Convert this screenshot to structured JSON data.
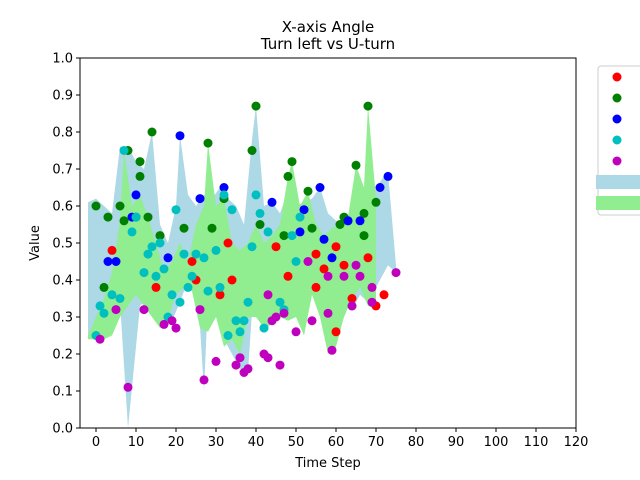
{
  "chart_data": {
    "type": "scatter",
    "title": "X-axis Angle",
    "subtitle": "Turn left vs U-turn",
    "xlabel": "Time Step",
    "ylabel": "Value",
    "xlim": [
      -4,
      120
    ],
    "ylim": [
      0.0,
      1.0
    ],
    "xticks": [
      "0",
      "10",
      "20",
      "30",
      "40",
      "50",
      "60",
      "70",
      "80",
      "90",
      "100",
      "110",
      "120"
    ],
    "yticks": [
      "0.0",
      "0.1",
      "0.2",
      "0.3",
      "0.4",
      "0.5",
      "0.6",
      "0.7",
      "0.8",
      "0.9",
      "1.0"
    ],
    "grid": false,
    "legend_position": "outside-right",
    "bands": [
      {
        "color": "#add8e6",
        "x_start": -2,
        "x_end": 75,
        "upper": [
          [
            -2,
            0.61
          ],
          [
            0,
            0.62
          ],
          [
            2,
            0.6
          ],
          [
            4,
            0.58
          ],
          [
            6,
            0.76
          ],
          [
            8,
            0.76
          ],
          [
            10,
            0.72
          ],
          [
            12,
            0.7
          ],
          [
            14,
            0.8
          ],
          [
            16,
            0.55
          ],
          [
            18,
            0.5
          ],
          [
            20,
            0.6
          ],
          [
            21,
            0.79
          ],
          [
            23,
            0.63
          ],
          [
            25,
            0.6
          ],
          [
            27,
            0.63
          ],
          [
            29,
            0.62
          ],
          [
            31,
            0.65
          ],
          [
            33,
            0.62
          ],
          [
            35,
            0.6
          ],
          [
            37,
            0.55
          ],
          [
            39,
            0.78
          ],
          [
            40,
            0.87
          ],
          [
            42,
            0.6
          ],
          [
            44,
            0.61
          ],
          [
            46,
            0.58
          ],
          [
            48,
            0.64
          ],
          [
            50,
            0.6
          ],
          [
            52,
            0.61
          ],
          [
            54,
            0.62
          ],
          [
            56,
            0.65
          ],
          [
            58,
            0.58
          ],
          [
            60,
            0.56
          ],
          [
            62,
            0.56
          ],
          [
            64,
            0.57
          ],
          [
            66,
            0.57
          ],
          [
            68,
            0.6
          ],
          [
            70,
            0.65
          ],
          [
            72,
            0.68
          ],
          [
            73,
            0.69
          ],
          [
            75,
            0.44
          ]
        ],
        "lower": [
          [
            75,
            0.42
          ],
          [
            73,
            0.44
          ],
          [
            70,
            0.38
          ],
          [
            68,
            0.34
          ],
          [
            66,
            0.36
          ],
          [
            64,
            0.32
          ],
          [
            62,
            0.35
          ],
          [
            60,
            0.4
          ],
          [
            58,
            0.44
          ],
          [
            56,
            0.44
          ],
          [
            54,
            0.45
          ],
          [
            52,
            0.44
          ],
          [
            50,
            0.3
          ],
          [
            48,
            0.42
          ],
          [
            46,
            0.36
          ],
          [
            44,
            0.3
          ],
          [
            42,
            0.28
          ],
          [
            40,
            0.48
          ],
          [
            38,
            0.15
          ],
          [
            36,
            0.16
          ],
          [
            34,
            0.2
          ],
          [
            32,
            0.24
          ],
          [
            30,
            0.38
          ],
          [
            28,
            0.35
          ],
          [
            27,
            0.1
          ],
          [
            25,
            0.45
          ],
          [
            23,
            0.4
          ],
          [
            21,
            0.34
          ],
          [
            19,
            0.29
          ],
          [
            17,
            0.3
          ],
          [
            15,
            0.32
          ],
          [
            13,
            0.35
          ],
          [
            11,
            0.33
          ],
          [
            8,
            0.0
          ],
          [
            6,
            0.34
          ],
          [
            4,
            0.3
          ],
          [
            2,
            0.28
          ],
          [
            0,
            0.25
          ],
          [
            -2,
            0.25
          ]
        ]
      },
      {
        "color": "#90ee90",
        "x_start": -2,
        "x_end": 70,
        "upper": [
          [
            -2,
            0.25
          ],
          [
            0,
            0.3
          ],
          [
            2,
            0.35
          ],
          [
            4,
            0.42
          ],
          [
            6,
            0.56
          ],
          [
            7,
            0.75
          ],
          [
            9,
            0.6
          ],
          [
            11,
            0.63
          ],
          [
            13,
            0.57
          ],
          [
            15,
            0.5
          ],
          [
            17,
            0.42
          ],
          [
            19,
            0.45
          ],
          [
            21,
            0.5
          ],
          [
            23,
            0.45
          ],
          [
            25,
            0.55
          ],
          [
            27,
            0.6
          ],
          [
            28,
            0.77
          ],
          [
            30,
            0.6
          ],
          [
            32,
            0.62
          ],
          [
            34,
            0.5
          ],
          [
            36,
            0.48
          ],
          [
            38,
            0.5
          ],
          [
            40,
            0.55
          ],
          [
            42,
            0.5
          ],
          [
            44,
            0.52
          ],
          [
            46,
            0.55
          ],
          [
            48,
            0.68
          ],
          [
            49,
            0.72
          ],
          [
            51,
            0.6
          ],
          [
            53,
            0.64
          ],
          [
            55,
            0.55
          ],
          [
            57,
            0.52
          ],
          [
            59,
            0.54
          ],
          [
            61,
            0.55
          ],
          [
            63,
            0.57
          ],
          [
            65,
            0.71
          ],
          [
            67,
            0.65
          ],
          [
            68,
            0.87
          ],
          [
            70,
            0.62
          ]
        ],
        "lower": [
          [
            70,
            0.32
          ],
          [
            68,
            0.33
          ],
          [
            66,
            0.38
          ],
          [
            64,
            0.35
          ],
          [
            62,
            0.3
          ],
          [
            60,
            0.22
          ],
          [
            58,
            0.2
          ],
          [
            56,
            0.3
          ],
          [
            54,
            0.36
          ],
          [
            52,
            0.25
          ],
          [
            50,
            0.3
          ],
          [
            48,
            0.29
          ],
          [
            46,
            0.3
          ],
          [
            44,
            0.28
          ],
          [
            42,
            0.27
          ],
          [
            40,
            0.3
          ],
          [
            38,
            0.3
          ],
          [
            36,
            0.2
          ],
          [
            34,
            0.24
          ],
          [
            32,
            0.22
          ],
          [
            30,
            0.3
          ],
          [
            28,
            0.26
          ],
          [
            26,
            0.27
          ],
          [
            24,
            0.37
          ],
          [
            22,
            0.38
          ],
          [
            20,
            0.36
          ],
          [
            18,
            0.3
          ],
          [
            16,
            0.27
          ],
          [
            14,
            0.3
          ],
          [
            12,
            0.33
          ],
          [
            10,
            0.36
          ],
          [
            8,
            0.33
          ],
          [
            6,
            0.3
          ],
          [
            4,
            0.25
          ],
          [
            2,
            0.24
          ],
          [
            0,
            0.24
          ],
          [
            -2,
            0.24
          ]
        ]
      }
    ],
    "series": [
      {
        "color": "#ff0000",
        "points": [
          [
            4,
            0.48
          ],
          [
            15,
            0.38
          ],
          [
            24,
            0.45
          ],
          [
            25,
            0.4
          ],
          [
            31,
            0.36
          ],
          [
            33,
            0.5
          ],
          [
            34,
            0.4
          ],
          [
            45,
            0.49
          ],
          [
            48,
            0.41
          ],
          [
            55,
            0.47
          ],
          [
            57,
            0.43
          ],
          [
            60,
            0.49
          ],
          [
            62,
            0.44
          ],
          [
            64,
            0.35
          ],
          [
            68,
            0.46
          ],
          [
            70,
            0.33
          ],
          [
            72,
            0.36
          ],
          [
            55,
            0.38
          ],
          [
            60,
            0.26
          ]
        ]
      },
      {
        "color": "#008000",
        "points": [
          [
            0,
            0.6
          ],
          [
            2,
            0.38
          ],
          [
            3,
            0.57
          ],
          [
            6,
            0.6
          ],
          [
            7,
            0.56
          ],
          [
            8,
            0.75
          ],
          [
            10,
            0.57
          ],
          [
            11,
            0.72
          ],
          [
            11,
            0.68
          ],
          [
            13,
            0.57
          ],
          [
            14,
            0.8
          ],
          [
            16,
            0.52
          ],
          [
            22,
            0.54
          ],
          [
            28,
            0.77
          ],
          [
            29,
            0.54
          ],
          [
            32,
            0.62
          ],
          [
            39,
            0.75
          ],
          [
            40,
            0.87
          ],
          [
            41,
            0.55
          ],
          [
            47,
            0.52
          ],
          [
            48,
            0.68
          ],
          [
            49,
            0.72
          ],
          [
            53,
            0.64
          ],
          [
            54,
            0.54
          ],
          [
            61,
            0.55
          ],
          [
            62,
            0.57
          ],
          [
            63,
            0.56
          ],
          [
            65,
            0.71
          ],
          [
            67,
            0.58
          ],
          [
            67,
            0.52
          ],
          [
            68,
            0.87
          ],
          [
            70,
            0.61
          ]
        ]
      },
      {
        "color": "#0000ff",
        "points": [
          [
            3,
            0.45
          ],
          [
            5,
            0.45
          ],
          [
            9,
            0.57
          ],
          [
            10,
            0.63
          ],
          [
            18,
            0.46
          ],
          [
            21,
            0.79
          ],
          [
            26,
            0.62
          ],
          [
            32,
            0.65
          ],
          [
            44,
            0.61
          ],
          [
            51,
            0.53
          ],
          [
            52,
            0.59
          ],
          [
            56,
            0.65
          ],
          [
            57,
            0.51
          ],
          [
            59,
            0.46
          ],
          [
            63,
            0.56
          ],
          [
            66,
            0.56
          ],
          [
            71,
            0.65
          ],
          [
            73,
            0.68
          ]
        ]
      },
      {
        "color": "#00bfbf",
        "points": [
          [
            0,
            0.25
          ],
          [
            1,
            0.33
          ],
          [
            2,
            0.31
          ],
          [
            4,
            0.36
          ],
          [
            6,
            0.35
          ],
          [
            7,
            0.75
          ],
          [
            9,
            0.53
          ],
          [
            10,
            0.57
          ],
          [
            12,
            0.42
          ],
          [
            13,
            0.47
          ],
          [
            14,
            0.49
          ],
          [
            15,
            0.41
          ],
          [
            16,
            0.5
          ],
          [
            17,
            0.43
          ],
          [
            18,
            0.3
          ],
          [
            19,
            0.36
          ],
          [
            20,
            0.59
          ],
          [
            21,
            0.34
          ],
          [
            22,
            0.47
          ],
          [
            23,
            0.38
          ],
          [
            24,
            0.41
          ],
          [
            25,
            0.47
          ],
          [
            27,
            0.46
          ],
          [
            28,
            0.37
          ],
          [
            30,
            0.48
          ],
          [
            31,
            0.38
          ],
          [
            32,
            0.63
          ],
          [
            33,
            0.25
          ],
          [
            34,
            0.59
          ],
          [
            35,
            0.29
          ],
          [
            36,
            0.26
          ],
          [
            37,
            0.29
          ],
          [
            38,
            0.34
          ],
          [
            39,
            0.49
          ],
          [
            40,
            0.63
          ],
          [
            41,
            0.58
          ],
          [
            42,
            0.27
          ],
          [
            43,
            0.53
          ],
          [
            46,
            0.34
          ],
          [
            47,
            0.32
          ],
          [
            49,
            0.52
          ],
          [
            50,
            0.45
          ],
          [
            51,
            0.57
          ],
          [
            64,
            0.33
          ]
        ]
      },
      {
        "color": "#bf00bf",
        "points": [
          [
            1,
            0.24
          ],
          [
            5,
            0.32
          ],
          [
            8,
            0.11
          ],
          [
            12,
            0.32
          ],
          [
            17,
            0.28
          ],
          [
            19,
            0.29
          ],
          [
            20,
            0.27
          ],
          [
            26,
            0.32
          ],
          [
            27,
            0.13
          ],
          [
            30,
            0.18
          ],
          [
            35,
            0.17
          ],
          [
            36,
            0.19
          ],
          [
            37,
            0.15
          ],
          [
            38,
            0.16
          ],
          [
            42,
            0.2
          ],
          [
            43,
            0.36
          ],
          [
            43,
            0.19
          ],
          [
            44,
            0.29
          ],
          [
            45,
            0.3
          ],
          [
            46,
            0.17
          ],
          [
            47,
            0.31
          ],
          [
            50,
            0.26
          ],
          [
            53,
            0.45
          ],
          [
            54,
            0.29
          ],
          [
            58,
            0.41
          ],
          [
            58,
            0.31
          ],
          [
            59,
            0.21
          ],
          [
            62,
            0.41
          ],
          [
            64,
            0.33
          ],
          [
            65,
            0.44
          ],
          [
            66,
            0.41
          ],
          [
            69,
            0.38
          ],
          [
            69,
            0.34
          ],
          [
            75,
            0.42
          ]
        ]
      }
    ],
    "legend": {
      "entries": [
        {
          "kind": "marker",
          "color": "#ff0000"
        },
        {
          "kind": "marker",
          "color": "#008000"
        },
        {
          "kind": "marker",
          "color": "#0000ff"
        },
        {
          "kind": "marker",
          "color": "#00bfbf"
        },
        {
          "kind": "marker",
          "color": "#bf00bf"
        },
        {
          "kind": "patch",
          "color": "#add8e6"
        },
        {
          "kind": "patch",
          "color": "#90ee90"
        }
      ]
    }
  }
}
